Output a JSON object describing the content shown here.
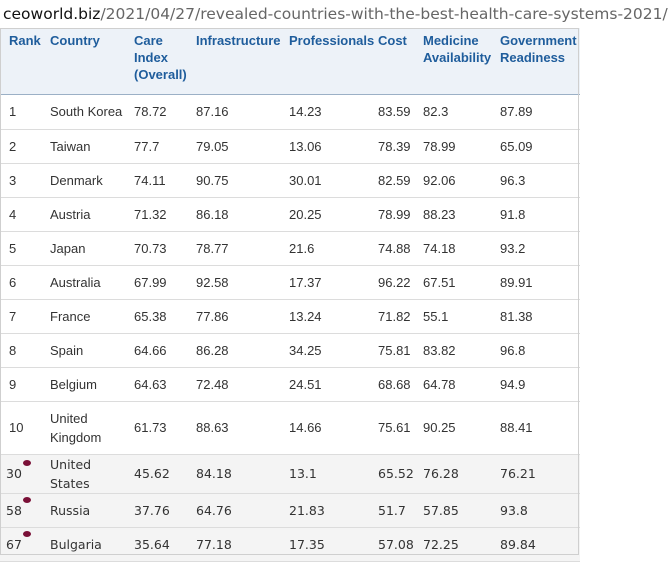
{
  "url": {
    "domain": "ceoworld.biz",
    "path": "/2021/04/27/revealed-countries-with-the-best-health-care-systems-2021/"
  },
  "table": {
    "headers": [
      "Rank",
      "Country",
      "Care Index (Overall)",
      "Infrastructure",
      "Professionals",
      "Cost",
      "Medicine Availability",
      "Government Readiness"
    ],
    "rows": [
      [
        "1",
        "South Korea",
        "78.72",
        "87.16",
        "14.23",
        "83.59",
        "82.3",
        "87.89"
      ],
      [
        "2",
        "Taiwan",
        "77.7",
        "79.05",
        "13.06",
        "78.39",
        "78.99",
        "65.09"
      ],
      [
        "3",
        "Denmark",
        "74.11",
        "90.75",
        "30.01",
        "82.59",
        "92.06",
        "96.3"
      ],
      [
        "4",
        "Austria",
        "71.32",
        "86.18",
        "20.25",
        "78.99",
        "88.23",
        "91.8"
      ],
      [
        "5",
        "Japan",
        "70.73",
        "78.77",
        "21.6",
        "74.88",
        "74.18",
        "93.2"
      ],
      [
        "6",
        "Australia",
        "67.99",
        "92.58",
        "17.37",
        "96.22",
        "67.51",
        "89.91"
      ],
      [
        "7",
        "France",
        "65.38",
        "77.86",
        "13.24",
        "71.82",
        "55.1",
        "81.38"
      ],
      [
        "8",
        "Spain",
        "64.66",
        "86.28",
        "34.25",
        "75.81",
        "83.82",
        "96.8"
      ],
      [
        "9",
        "Belgium",
        "64.63",
        "72.48",
        "24.51",
        "68.68",
        "64.78",
        "94.9"
      ],
      [
        "10",
        "United Kingdom",
        "61.73",
        "88.63",
        "14.66",
        "75.61",
        "90.25",
        "88.41"
      ],
      [
        "30",
        "United States",
        "45.62",
        "84.18",
        "13.1",
        "65.52",
        "76.28",
        "76.21"
      ],
      [
        "58",
        "Russia",
        "37.76",
        "64.76",
        "21.83",
        "51.7",
        "57.85",
        "93.8"
      ],
      [
        "67",
        "Bulgaria",
        "35.64",
        "77.18",
        "17.35",
        "57.08",
        "72.25",
        "89.84"
      ]
    ]
  },
  "colors": {
    "header_background": "#edf2f8",
    "header_text": "#1f5d9c",
    "marker": "#7a1037"
  }
}
